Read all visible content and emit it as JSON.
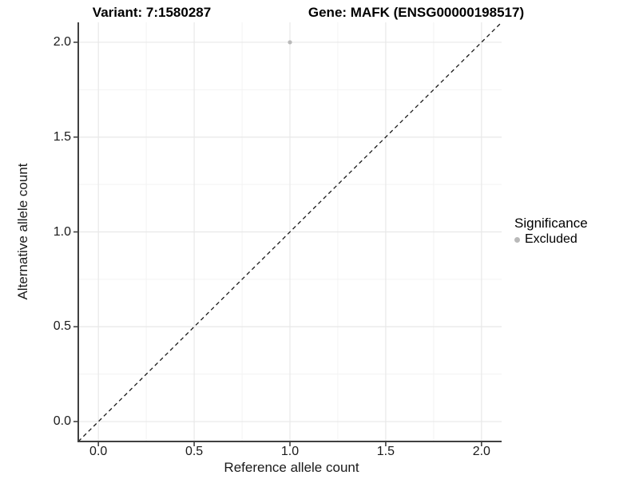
{
  "chart_data": {
    "type": "scatter",
    "title_left": "Variant: 7:1580287",
    "title_right": "Gene: MAFK (ENSG00000198517)",
    "xlabel": "Reference allele count",
    "ylabel": "Alternative allele count",
    "xlim": [
      -0.105,
      2.105
    ],
    "ylim": [
      -0.105,
      2.105
    ],
    "x_ticks": [
      "0.0",
      "0.5",
      "1.0",
      "1.5",
      "2.0"
    ],
    "y_ticks": [
      "0.0",
      "0.5",
      "1.0",
      "1.5",
      "2.0"
    ],
    "grid": {
      "major": true,
      "minor": true
    },
    "legend": {
      "title": "Significance",
      "position": "right"
    },
    "series": [
      {
        "name": "Excluded",
        "color": "#b9b9b9",
        "points": [
          {
            "x": 1.0,
            "y": 2.0
          }
        ]
      }
    ],
    "reference_line": {
      "slope": 1,
      "intercept": 0,
      "style": "dashed",
      "color": "#1a1a1a"
    },
    "colors": {
      "background": "#ffffff",
      "grid_major": "#e8e8e8",
      "grid_minor": "#f3f3f3",
      "axis": "#404040",
      "tick_mark": "#404040",
      "tick_text": "#1a1a1a",
      "point": "#b9b9b9"
    }
  }
}
